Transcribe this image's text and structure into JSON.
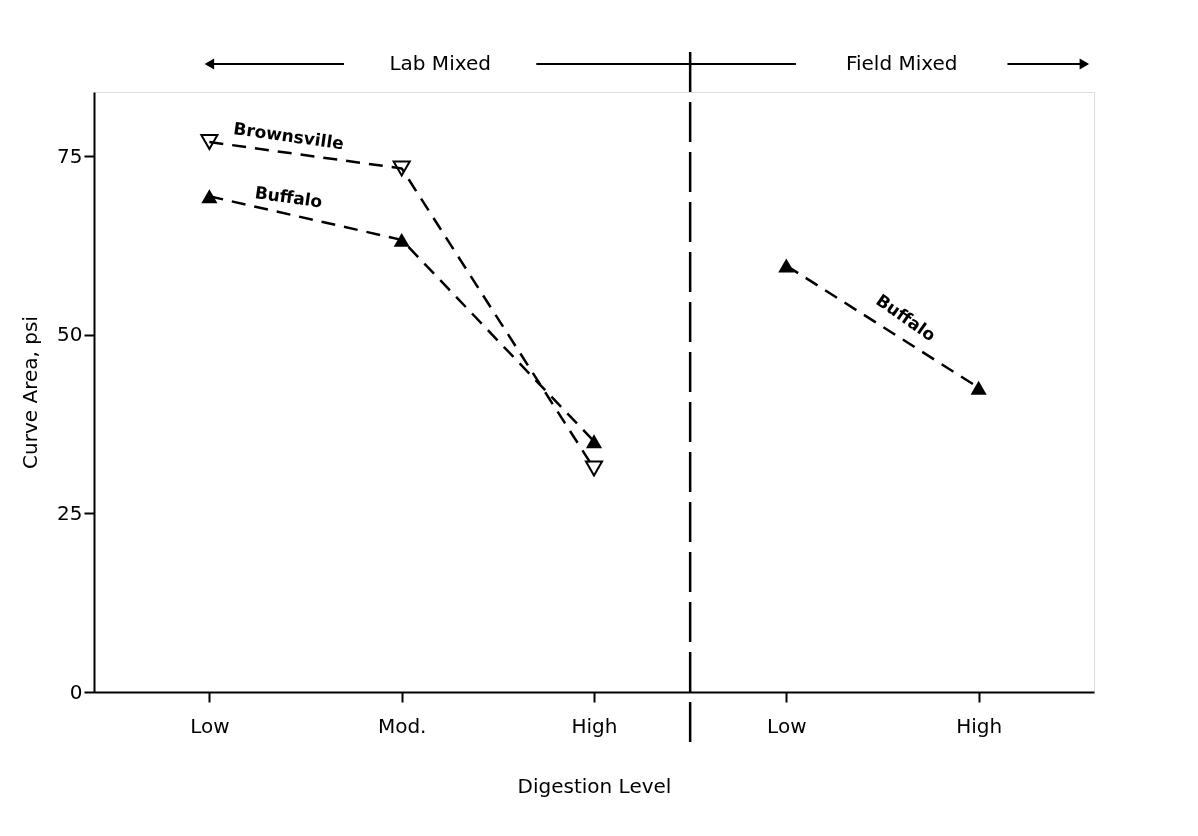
{
  "chart_data": {
    "type": "line",
    "xlabel": "Digestion Level",
    "ylabel": "Curve Area, psi",
    "categories": [
      "Low",
      "Mod.",
      "High",
      "Low",
      "High"
    ],
    "series": [
      {
        "name": "Brownsville",
        "color": "#000000",
        "marker": "triangle-down",
        "values": [
          77,
          73.3,
          31.3,
          null,
          null
        ]
      },
      {
        "name": "Buffalo",
        "color": "#000000",
        "marker": "triangle",
        "values": [
          69.4,
          63.3,
          35.1,
          null,
          null
        ]
      },
      {
        "name": "Buffalo",
        "color": "#000000",
        "marker": "triangle",
        "values": [
          null,
          null,
          null,
          59.7,
          42.6
        ]
      }
    ],
    "ylim": [
      0,
      84
    ],
    "yticks": [
      0,
      25,
      50,
      75
    ],
    "grid": false,
    "line_style": "dashed",
    "annotations": [
      "Lab Mixed",
      "Field Mixed"
    ]
  }
}
